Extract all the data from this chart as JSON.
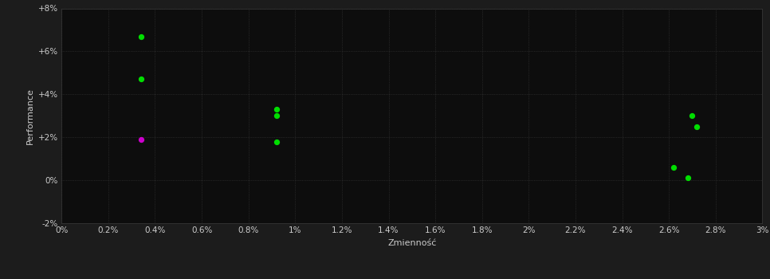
{
  "background_color": "#1c1c1c",
  "plot_bg_color": "#0d0d0d",
  "grid_color": "#3a3a3a",
  "text_color": "#cccccc",
  "xlabel": "Zmienność",
  "ylabel": "Performance",
  "xlim": [
    0.0,
    0.03
  ],
  "ylim": [
    -0.02,
    0.08
  ],
  "xticks": [
    0.0,
    0.002,
    0.004,
    0.006,
    0.008,
    0.01,
    0.012,
    0.014,
    0.016,
    0.018,
    0.02,
    0.022,
    0.024,
    0.026,
    0.028,
    0.03
  ],
  "yticks": [
    -0.02,
    0.0,
    0.02,
    0.04,
    0.06,
    0.08
  ],
  "xtick_labels": [
    "0%",
    "0.2%",
    "0.4%",
    "0.6%",
    "0.8%",
    "1%",
    "1.2%",
    "1.4%",
    "1.6%",
    "1.8%",
    "2%",
    "2.2%",
    "2.4%",
    "2.6%",
    "2.8%",
    "3%"
  ],
  "ytick_labels": [
    "-2%",
    "0%",
    "+2%",
    "+4%",
    "+6%",
    "+8%"
  ],
  "green_points": [
    [
      0.0034,
      0.067
    ],
    [
      0.0034,
      0.047
    ],
    [
      0.0092,
      0.033
    ],
    [
      0.0092,
      0.03
    ],
    [
      0.0092,
      0.018
    ],
    [
      0.027,
      0.03
    ],
    [
      0.0272,
      0.025
    ],
    [
      0.0262,
      0.006
    ],
    [
      0.0268,
      0.001
    ]
  ],
  "magenta_points": [
    [
      0.0034,
      0.019
    ]
  ],
  "point_size": 18,
  "green_color": "#00dd00",
  "magenta_color": "#cc00cc",
  "font_size_axis": 8,
  "font_size_tick": 7.5
}
